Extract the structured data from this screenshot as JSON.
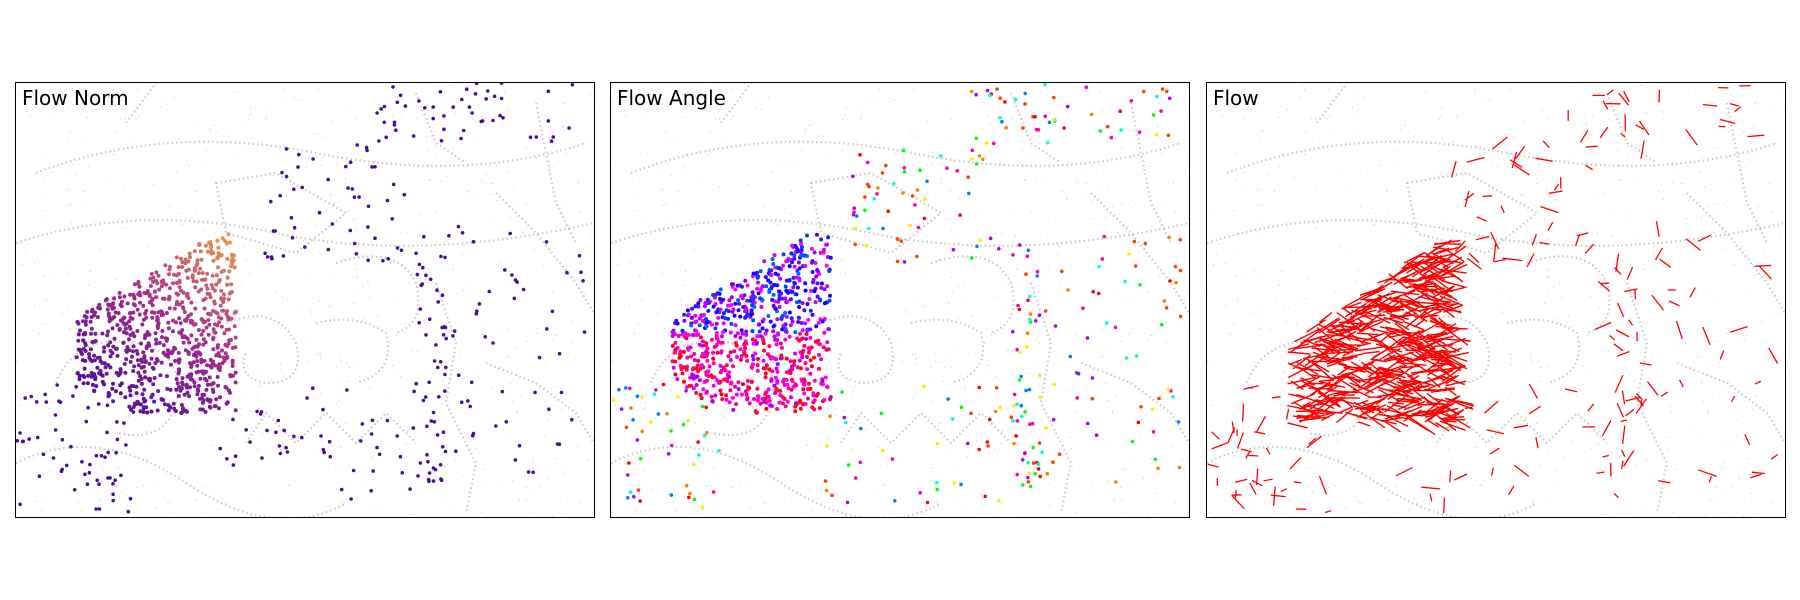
{
  "figure": {
    "panels": [
      {
        "title": "Flow Norm",
        "view": "flow-magnitude"
      },
      {
        "title": "Flow Angle",
        "view": "flow-direction"
      },
      {
        "title": "Flow",
        "view": "flow-vectors"
      }
    ],
    "colors": {
      "background": "#ffffff",
      "frame": "#000000",
      "event_points": "#b0b0b0",
      "norm_low": "#4b0c9e",
      "norm_mid": "#a52c8c",
      "norm_high": "#f0a148",
      "vectors": "#ff0000"
    },
    "colormaps": {
      "norm": "plasma",
      "angle": "hsv"
    }
  }
}
